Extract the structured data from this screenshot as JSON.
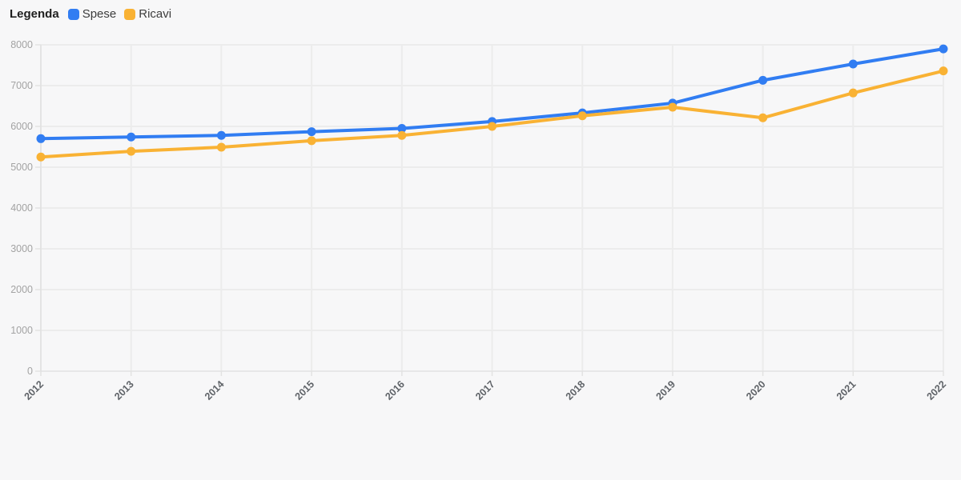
{
  "page": {
    "background": "#f7f7f8"
  },
  "legend": {
    "title": "Legenda"
  },
  "chart_data": {
    "type": "line",
    "x": [
      "2012",
      "2013",
      "2014",
      "2015",
      "2016",
      "2017",
      "2018",
      "2019",
      "2020",
      "2021",
      "2022"
    ],
    "series": [
      {
        "name": "Spese",
        "color": "#317df2",
        "values": [
          5700,
          5740,
          5780,
          5870,
          5950,
          6120,
          6330,
          6570,
          7130,
          7530,
          7900
        ]
      },
      {
        "name": "Ricavi",
        "color": "#f9b234",
        "values": [
          5250,
          5390,
          5490,
          5650,
          5780,
          6000,
          6260,
          6470,
          6210,
          6820,
          7360
        ]
      }
    ],
    "yticks": [
      0,
      1000,
      2000,
      3000,
      4000,
      5000,
      6000,
      7000,
      8000
    ],
    "ylim": [
      0,
      8000
    ],
    "grid": true,
    "legend_position": "top-left",
    "marker": "circle",
    "colors": {
      "background": "#f7f7f8",
      "gridline": "#ececec",
      "axis": "#e2e2e2",
      "y_tick_label": "#a3a3a3",
      "x_tick_label": "#5f6368",
      "legend_title": "#1f1f1f",
      "legend_label": "#3c3c3c"
    }
  }
}
